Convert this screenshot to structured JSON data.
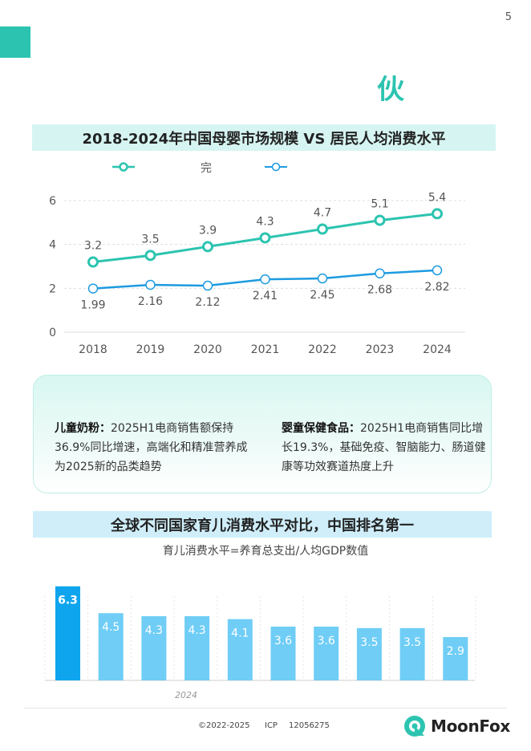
{
  "page": {
    "number": "5",
    "headline_visible": "伙"
  },
  "section1": {
    "title": "2018-2024年中国母婴市场规模 VS 居民人均消费水平",
    "legend": [
      {
        "label": "",
        "color": "#2cc4b0"
      },
      {
        "label": "完",
        "color": "#1e9be0"
      }
    ]
  },
  "chart_data": [
    {
      "type": "line",
      "title": "2018-2024年中国母婴市场规模 VS 居民人均消费水平",
      "x": [
        "2018",
        "2019",
        "2020",
        "2021",
        "2022",
        "2023",
        "2024"
      ],
      "ylim": [
        0,
        6
      ],
      "yticks": [
        0,
        2,
        4,
        6
      ],
      "grid": true,
      "legend_position": "top-left",
      "series": [
        {
          "name": "",
          "color": "#2cc4b0",
          "values": [
            3.2,
            3.5,
            3.9,
            4.3,
            4.7,
            5.1,
            5.4
          ],
          "labels": [
            "3.2",
            "3.5",
            "3.9",
            "4.3",
            "4.7",
            "5.1",
            "5.4"
          ]
        },
        {
          "name": "完",
          "color": "#1e9be0",
          "values": [
            1.99,
            2.16,
            2.12,
            2.41,
            2.45,
            2.68,
            2.82
          ],
          "labels": [
            "1.99",
            "2.16",
            "2.12",
            "2.41",
            "2.45",
            "2.68",
            "2.82"
          ]
        }
      ]
    },
    {
      "type": "bar",
      "title": "全球不同国家育儿消费水平对比，中国排名第一",
      "subtitle": "育儿消费水平=养育总支出/人均GDP数值",
      "values": [
        6.3,
        4.5,
        4.3,
        4.3,
        4.1,
        3.6,
        3.6,
        3.5,
        3.5,
        2.9
      ],
      "labels": [
        "6.3",
        "4.5",
        "4.3",
        "4.3",
        "4.1",
        "3.6",
        "3.6",
        "3.5",
        "3.5",
        "2.9"
      ],
      "highlight_color": "#0ea5ee",
      "bar_color": "#6fcdf6",
      "ylim": [
        0,
        6.5
      ],
      "grid": true,
      "axis_note": "2024"
    }
  ],
  "info": {
    "left_title": "儿童奶粉：",
    "left_text": "2025H1电商销售额保持36.9%同比增速，高端化和精准营养成为2025新的品类趋势",
    "right_title": "婴童保健食品：",
    "right_text": "2025H1电商销售同比增长19.3%，基础免疫、智脑能力、肠道健康等功效赛道热度上升"
  },
  "section2": {
    "title": "全球不同国家育儿消费水平对比，中国排名第一",
    "subtitle": "育儿消费水平=养育总支出/人均GDP数值",
    "axis_note": "2024"
  },
  "footer": {
    "copyright": "©2022-2025",
    "icp_label": "ICP",
    "icp_number": "12056275",
    "brand": "MoonFox"
  }
}
